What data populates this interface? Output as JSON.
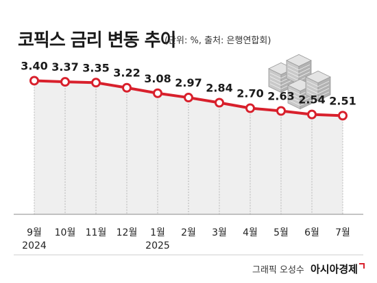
{
  "header": {
    "title": "코픽스 금리 변동 추이",
    "subtitle": "(단위: %, 출처: 은행연합회)"
  },
  "credit": {
    "text": "그래픽 오성수",
    "brand": "아시아경제"
  },
  "colors": {
    "line": "#d8202c",
    "area": "#efefef",
    "divider": "#cccccc",
    "text": "#1a1a1a"
  },
  "icons": [
    "money-stack-icon"
  ],
  "chart_data": {
    "type": "line",
    "title": "코픽스 금리 변동 추이",
    "subtitle": "(단위: %, 출처: 은행연합회)",
    "categories": [
      "9월",
      "10월",
      "11월",
      "12월",
      "1월",
      "2월",
      "3월",
      "4월",
      "5월",
      "6월",
      "7월"
    ],
    "year_labels": {
      "0": "2024",
      "4": "2025"
    },
    "values": [
      3.4,
      3.37,
      3.35,
      3.22,
      3.08,
      2.97,
      2.84,
      2.7,
      2.63,
      2.54,
      2.51
    ],
    "value_labels": [
      "3.40",
      "3.37",
      "3.35",
      "3.22",
      "3.08",
      "2.97",
      "2.84",
      "2.70",
      "2.63",
      "2.54",
      "2.51"
    ],
    "ylim": [
      0,
      3.6
    ],
    "grid": false,
    "legend": "none"
  }
}
